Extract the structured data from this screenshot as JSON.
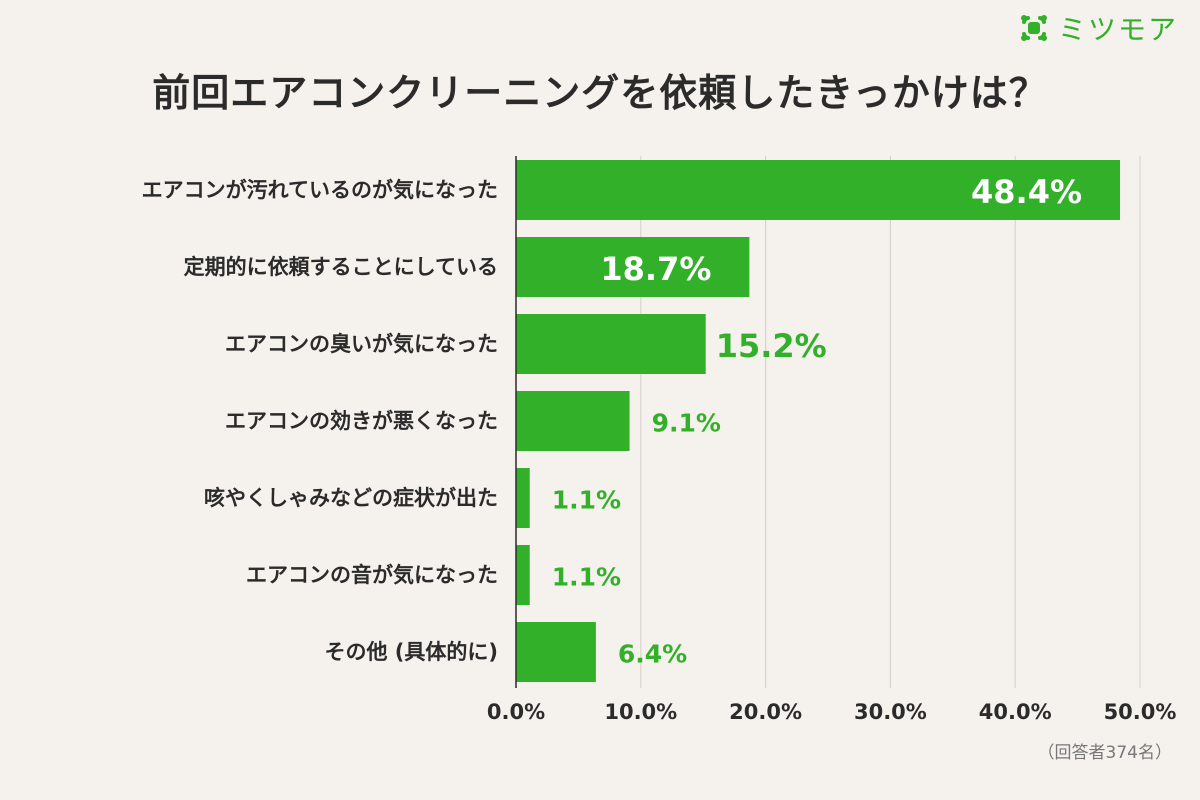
{
  "logo": {
    "text": "ミツモア",
    "icon": "mitsumore-logo-icon",
    "color": "#33b02a"
  },
  "note": "（回答者374名）",
  "chart_data": {
    "type": "bar",
    "orientation": "horizontal",
    "title": "前回エアコンクリーニングを依頼したきっかけは？",
    "categories": [
      "エアコンが汚れているのが気になった",
      "定期的に依頼することにしている",
      "エアコンの臭いが気になった",
      "エアコンの効きが悪くなった",
      "咳やくしゃみなどの症状が出た",
      "エアコンの音が気になった",
      "その他 (具体的に)"
    ],
    "values": [
      48.4,
      18.7,
      15.2,
      9.1,
      1.1,
      1.1,
      6.4
    ],
    "value_labels": [
      "48.4%",
      "18.7%",
      "15.2%",
      "9.1%",
      "1.1%",
      "1.1%",
      "6.4%"
    ],
    "xlim": [
      0,
      50
    ],
    "x_ticks": [
      0,
      10,
      20,
      30,
      40,
      50
    ],
    "x_tick_labels": [
      "0.0%",
      "10.0%",
      "20.0%",
      "30.0%",
      "40.0%",
      "50.0%"
    ],
    "grid": "vertical",
    "colors": {
      "bar": "#33b02a",
      "label_outside": "#33b02a",
      "label_inside": "#ffffff",
      "text": "#2b2b2b",
      "grid": "#d8d4cd",
      "axis": "#2b2b2b"
    }
  }
}
